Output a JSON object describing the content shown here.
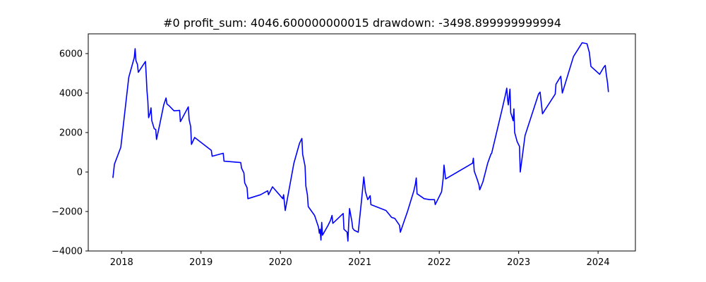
{
  "chart_data": {
    "type": "line",
    "title": "#0   profit_sum: 4046.600000000015 drawdown: -3498.899999999994",
    "xlabel": "",
    "ylabel": "",
    "x_ticks": [
      "2018",
      "2019",
      "2020",
      "2021",
      "2022",
      "2023",
      "2024"
    ],
    "y_ticks": [
      "−4000",
      "−2000",
      "0",
      "2000",
      "4000",
      "6000"
    ],
    "xlim": [
      2017.58,
      2024.47
    ],
    "ylim": [
      -4000,
      7000
    ],
    "grid": false,
    "legend": "none",
    "series": [
      {
        "color": "#0000ff",
        "points": [
          [
            2017.89,
            -300
          ],
          [
            2017.91,
            400
          ],
          [
            2017.99,
            1250
          ],
          [
            2018.09,
            4800
          ],
          [
            2018.16,
            5800
          ],
          [
            2018.17,
            6250
          ],
          [
            2018.18,
            5650
          ],
          [
            2018.2,
            5450
          ],
          [
            2018.21,
            5050
          ],
          [
            2018.3,
            5600
          ],
          [
            2018.31,
            4900
          ],
          [
            2018.32,
            4100
          ],
          [
            2018.33,
            3600
          ],
          [
            2018.34,
            2750
          ],
          [
            2018.36,
            3000
          ],
          [
            2018.37,
            3250
          ],
          [
            2018.38,
            2600
          ],
          [
            2018.41,
            2200
          ],
          [
            2018.43,
            2150
          ],
          [
            2018.44,
            1650
          ],
          [
            2018.48,
            2400
          ],
          [
            2018.53,
            3400
          ],
          [
            2018.56,
            3750
          ],
          [
            2018.57,
            3450
          ],
          [
            2018.6,
            3350
          ],
          [
            2018.66,
            3100
          ],
          [
            2018.73,
            3120
          ],
          [
            2018.74,
            2550
          ],
          [
            2018.84,
            3300
          ],
          [
            2018.85,
            2650
          ],
          [
            2018.87,
            2300
          ],
          [
            2018.88,
            1400
          ],
          [
            2018.92,
            1750
          ],
          [
            2019.13,
            1100
          ],
          [
            2019.14,
            800
          ],
          [
            2019.28,
            950
          ],
          [
            2019.29,
            550
          ],
          [
            2019.5,
            480
          ],
          [
            2019.51,
            200
          ],
          [
            2019.54,
            -50
          ],
          [
            2019.55,
            -550
          ],
          [
            2019.58,
            -800
          ],
          [
            2019.59,
            -1350
          ],
          [
            2019.75,
            -1150
          ],
          [
            2019.84,
            -950
          ],
          [
            2019.85,
            -1150
          ],
          [
            2019.9,
            -750
          ],
          [
            2020.03,
            -1350
          ],
          [
            2020.04,
            -1150
          ],
          [
            2020.06,
            -1950
          ],
          [
            2020.17,
            450
          ],
          [
            2020.24,
            1450
          ],
          [
            2020.27,
            1700
          ],
          [
            2020.28,
            900
          ],
          [
            2020.31,
            300
          ],
          [
            2020.32,
            -700
          ],
          [
            2020.34,
            -1150
          ],
          [
            2020.35,
            -1750
          ],
          [
            2020.43,
            -2200
          ],
          [
            2020.48,
            -2800
          ],
          [
            2020.49,
            -3100
          ],
          [
            2020.5,
            -2900
          ],
          [
            2020.51,
            -3450
          ],
          [
            2020.52,
            -2550
          ],
          [
            2020.53,
            -3200
          ],
          [
            2020.6,
            -2700
          ],
          [
            2020.63,
            -2450
          ],
          [
            2020.65,
            -2200
          ],
          [
            2020.66,
            -2600
          ],
          [
            2020.79,
            -2100
          ],
          [
            2020.8,
            -2900
          ],
          [
            2020.84,
            -3050
          ],
          [
            2020.85,
            -3500
          ],
          [
            2020.86,
            -2600
          ],
          [
            2020.87,
            -1850
          ],
          [
            2020.9,
            -2500
          ],
          [
            2020.91,
            -2850
          ],
          [
            2020.93,
            -2950
          ],
          [
            2020.98,
            -3050
          ],
          [
            2021.02,
            -1500
          ],
          [
            2021.05,
            -250
          ],
          [
            2021.07,
            -1000
          ],
          [
            2021.1,
            -1400
          ],
          [
            2021.13,
            -1200
          ],
          [
            2021.14,
            -1650
          ],
          [
            2021.33,
            -1950
          ],
          [
            2021.4,
            -2300
          ],
          [
            2021.44,
            -2350
          ],
          [
            2021.5,
            -2700
          ],
          [
            2021.51,
            -3050
          ],
          [
            2021.54,
            -2700
          ],
          [
            2021.6,
            -2000
          ],
          [
            2021.68,
            -950
          ],
          [
            2021.7,
            -600
          ],
          [
            2021.71,
            -300
          ],
          [
            2021.72,
            -1100
          ],
          [
            2021.81,
            -1350
          ],
          [
            2021.88,
            -1400
          ],
          [
            2021.94,
            -1400
          ],
          [
            2021.95,
            -1650
          ],
          [
            2022.03,
            -1000
          ],
          [
            2022.05,
            -300
          ],
          [
            2022.06,
            350
          ],
          [
            2022.08,
            -350
          ],
          [
            2022.42,
            450
          ],
          [
            2022.43,
            700
          ],
          [
            2022.44,
            50
          ],
          [
            2022.48,
            -400
          ],
          [
            2022.5,
            -650
          ],
          [
            2022.51,
            -900
          ],
          [
            2022.55,
            -500
          ],
          [
            2022.61,
            450
          ],
          [
            2022.65,
            900
          ],
          [
            2022.66,
            950
          ],
          [
            2022.79,
            3150
          ],
          [
            2022.83,
            3850
          ],
          [
            2022.85,
            4250
          ],
          [
            2022.86,
            3700
          ],
          [
            2022.87,
            3400
          ],
          [
            2022.89,
            4200
          ],
          [
            2022.9,
            3000
          ],
          [
            2022.92,
            2750
          ],
          [
            2022.93,
            2600
          ],
          [
            2022.94,
            3200
          ],
          [
            2022.95,
            2000
          ],
          [
            2022.97,
            1700
          ],
          [
            2022.98,
            1550
          ],
          [
            2023.01,
            1300
          ],
          [
            2023.02,
            0
          ],
          [
            2023.08,
            1850
          ],
          [
            2023.25,
            3950
          ],
          [
            2023.27,
            4050
          ],
          [
            2023.3,
            2950
          ],
          [
            2023.46,
            3950
          ],
          [
            2023.47,
            4450
          ],
          [
            2023.53,
            4850
          ],
          [
            2023.55,
            4000
          ],
          [
            2023.69,
            5850
          ],
          [
            2023.8,
            6550
          ],
          [
            2023.86,
            6500
          ],
          [
            2023.89,
            6050
          ],
          [
            2023.91,
            5350
          ],
          [
            2024.02,
            4950
          ],
          [
            2024.07,
            5300
          ],
          [
            2024.09,
            5400
          ],
          [
            2024.1,
            5050
          ],
          [
            2024.12,
            4500
          ],
          [
            2024.13,
            4050
          ]
        ]
      }
    ]
  }
}
